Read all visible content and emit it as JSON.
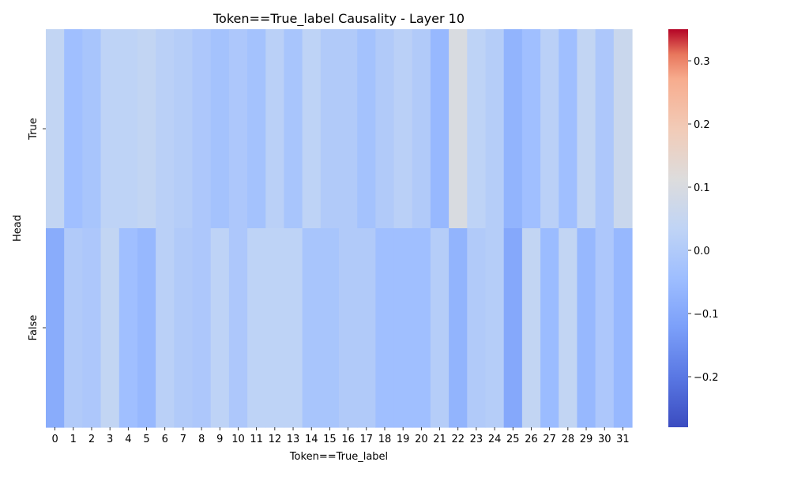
{
  "chart_data": {
    "type": "heatmap",
    "title": "Token==True_label Causality - Layer 10",
    "xlabel": "Token==True_label",
    "ylabel": "Head",
    "rows": [
      "True",
      "False"
    ],
    "columns": [
      "0",
      "1",
      "2",
      "3",
      "4",
      "5",
      "6",
      "7",
      "8",
      "9",
      "10",
      "11",
      "12",
      "13",
      "14",
      "15",
      "16",
      "17",
      "18",
      "19",
      "20",
      "21",
      "22",
      "23",
      "24",
      "25",
      "26",
      "27",
      "28",
      "29",
      "30",
      "31"
    ],
    "values": [
      [
        0.04,
        -0.04,
        -0.02,
        0.03,
        0.03,
        0.04,
        0.02,
        0.01,
        -0.01,
        -0.03,
        -0.01,
        -0.03,
        0.02,
        -0.02,
        0.03,
        0.0,
        0.0,
        -0.03,
        0.0,
        0.02,
        0.0,
        -0.06,
        0.1,
        0.03,
        0.01,
        -0.07,
        -0.04,
        0.02,
        -0.04,
        0.04,
        -0.01,
        0.06
      ],
      [
        -0.09,
        0.0,
        -0.01,
        0.04,
        -0.04,
        -0.06,
        0.02,
        0.0,
        -0.01,
        0.03,
        -0.01,
        0.03,
        0.03,
        0.03,
        -0.02,
        -0.02,
        0.0,
        0.0,
        -0.04,
        -0.04,
        -0.04,
        0.01,
        -0.07,
        0.0,
        0.01,
        -0.1,
        0.04,
        -0.05,
        0.04,
        -0.06,
        -0.01,
        -0.06
      ]
    ],
    "colorbar": {
      "vmin": -0.28,
      "vmax": 0.35,
      "colormap": "coolwarm",
      "ticks": [
        "0.3",
        "0.2",
        "0.1",
        "0.0",
        "−0.1",
        "−0.2"
      ],
      "tick_values": [
        0.3,
        0.2,
        0.1,
        0.0,
        -0.1,
        -0.2
      ]
    }
  }
}
